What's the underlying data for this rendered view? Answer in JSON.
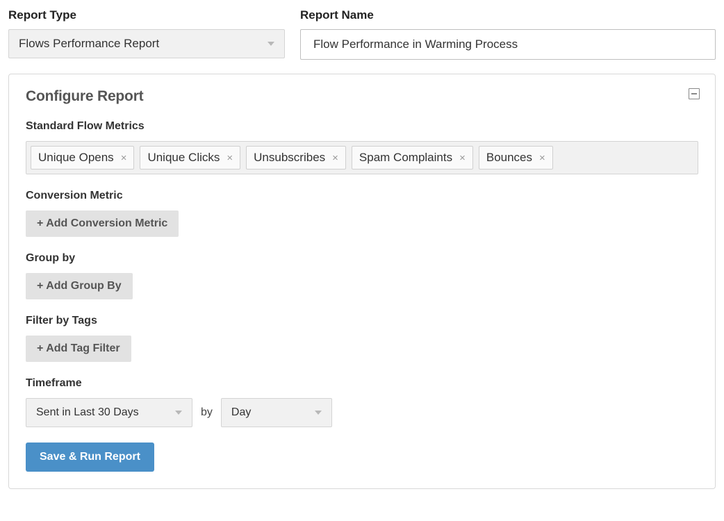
{
  "labels": {
    "report_type": "Report Type",
    "report_name": "Report Name",
    "configure_report": "Configure Report",
    "standard_flow_metrics": "Standard Flow Metrics",
    "conversion_metric": "Conversion Metric",
    "group_by": "Group by",
    "filter_by_tags": "Filter by Tags",
    "timeframe": "Timeframe",
    "by": "by"
  },
  "colors": {
    "panel_border": "#d8d8d8",
    "select_bg": "#f1f1f1",
    "select_border": "#d4d4d4",
    "tag_bg": "#fafafa",
    "tag_border": "#d0d0d0",
    "add_btn_bg": "#e2e2e2",
    "primary_btn_bg": "#4a90c8",
    "text_primary": "#222222",
    "text_muted": "#555555"
  },
  "values": {
    "report_type": "Flows Performance Report",
    "report_name": "Flow Performance in Warming Process",
    "timeframe_range": "Sent in Last 30 Days",
    "timeframe_granularity": "Day"
  },
  "metric_tags": [
    "Unique Opens",
    "Unique Clicks",
    "Unsubscribes",
    "Spam Complaints",
    "Bounces"
  ],
  "buttons": {
    "add_conversion_metric": "+ Add Conversion Metric",
    "add_group_by": "+ Add Group By",
    "add_tag_filter": "+ Add Tag Filter",
    "save_run": "Save & Run Report"
  }
}
